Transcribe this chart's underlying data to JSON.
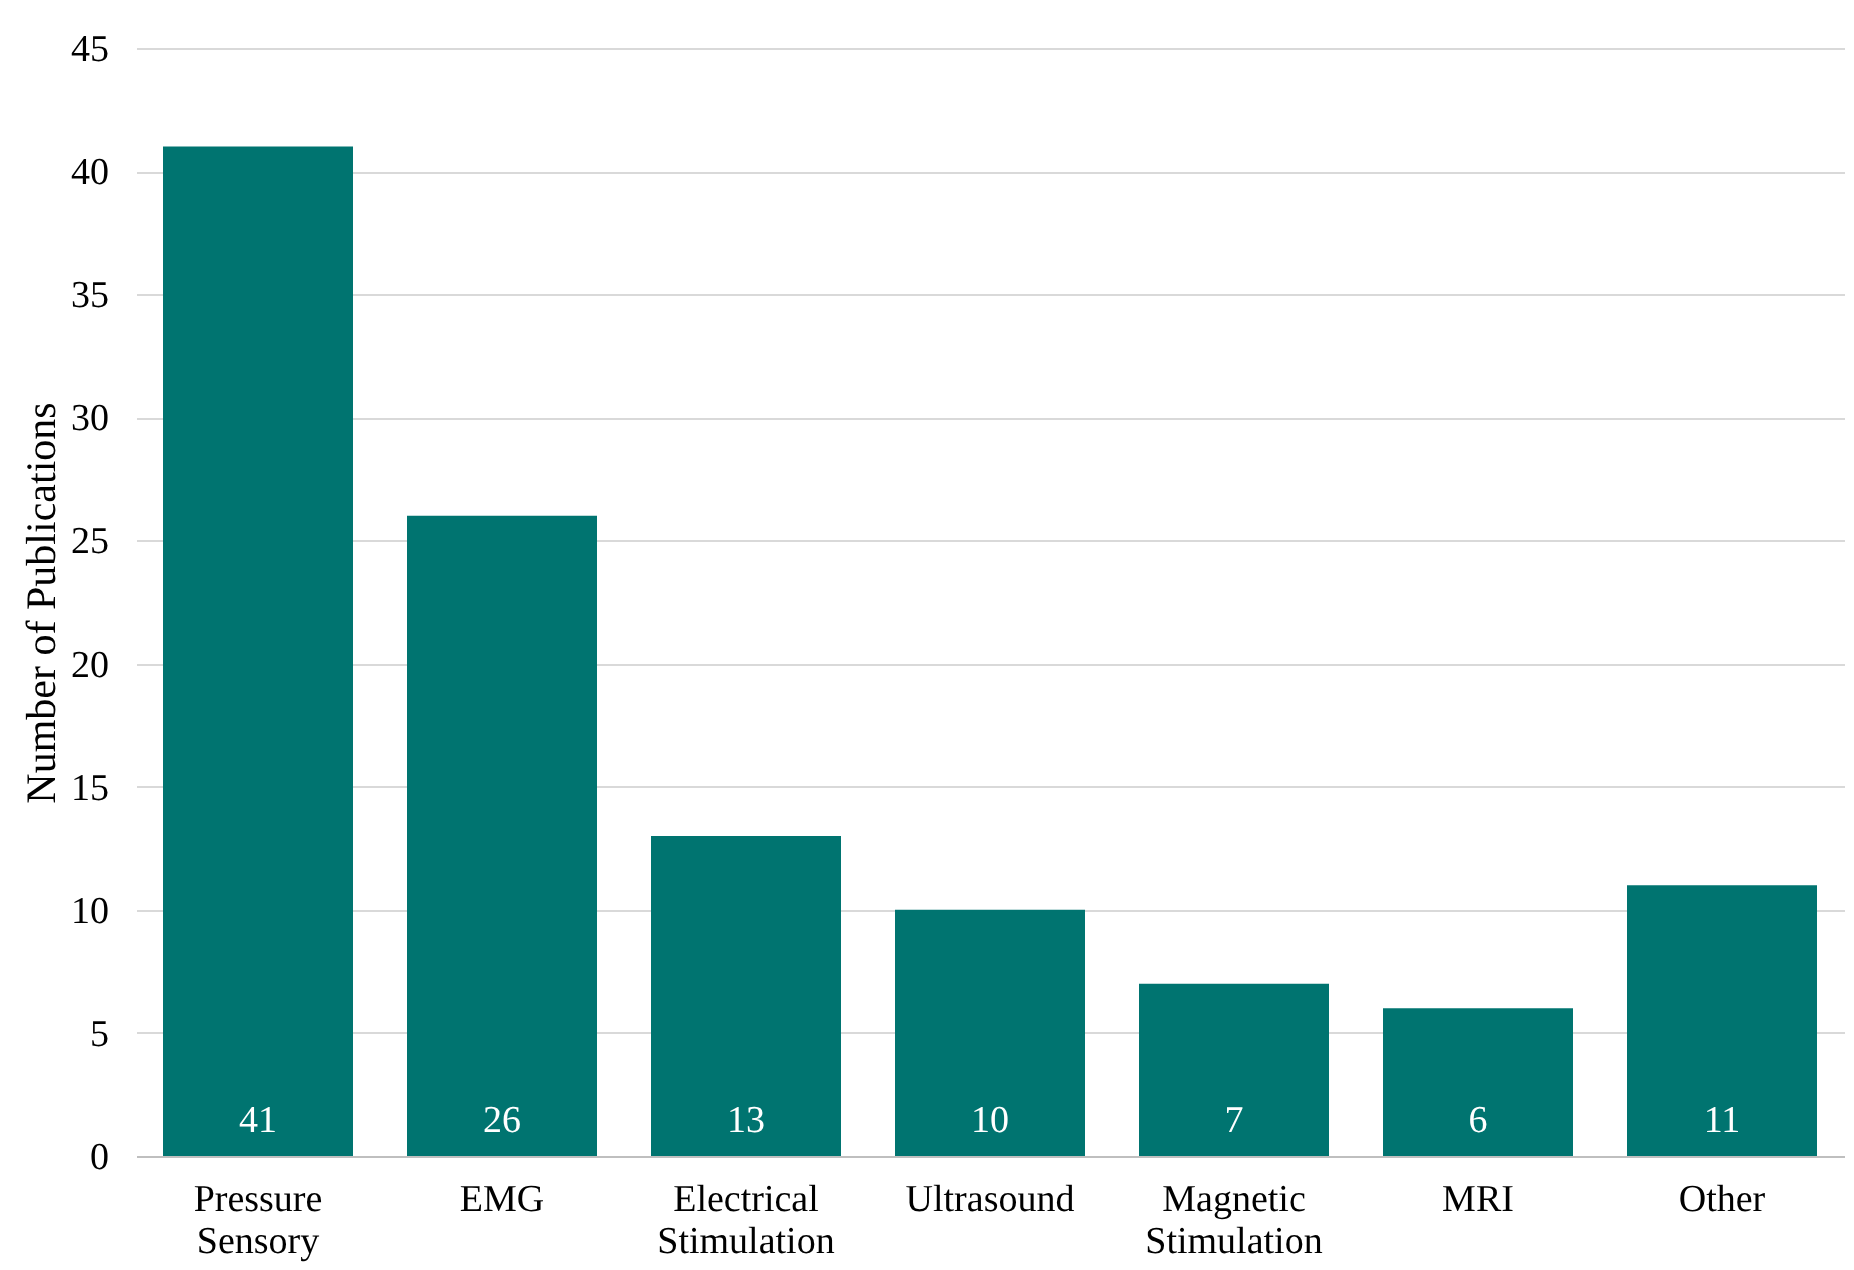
{
  "chart_data": {
    "type": "bar",
    "ylabel": "Number of Publications",
    "categories": [
      "Pressure Sensory",
      "EMG",
      "Electrical Stimulation",
      "Ultrasound",
      "Magnetic Stimulation",
      "MRI",
      "Other"
    ],
    "values": [
      41,
      26,
      13,
      10,
      7,
      6,
      11
    ],
    "color": "#007470",
    "ylim": [
      0,
      45
    ],
    "yticks": [
      0,
      5,
      10,
      15,
      20,
      25,
      30,
      35,
      40,
      45
    ],
    "grid": "y",
    "data_labels": true
  }
}
